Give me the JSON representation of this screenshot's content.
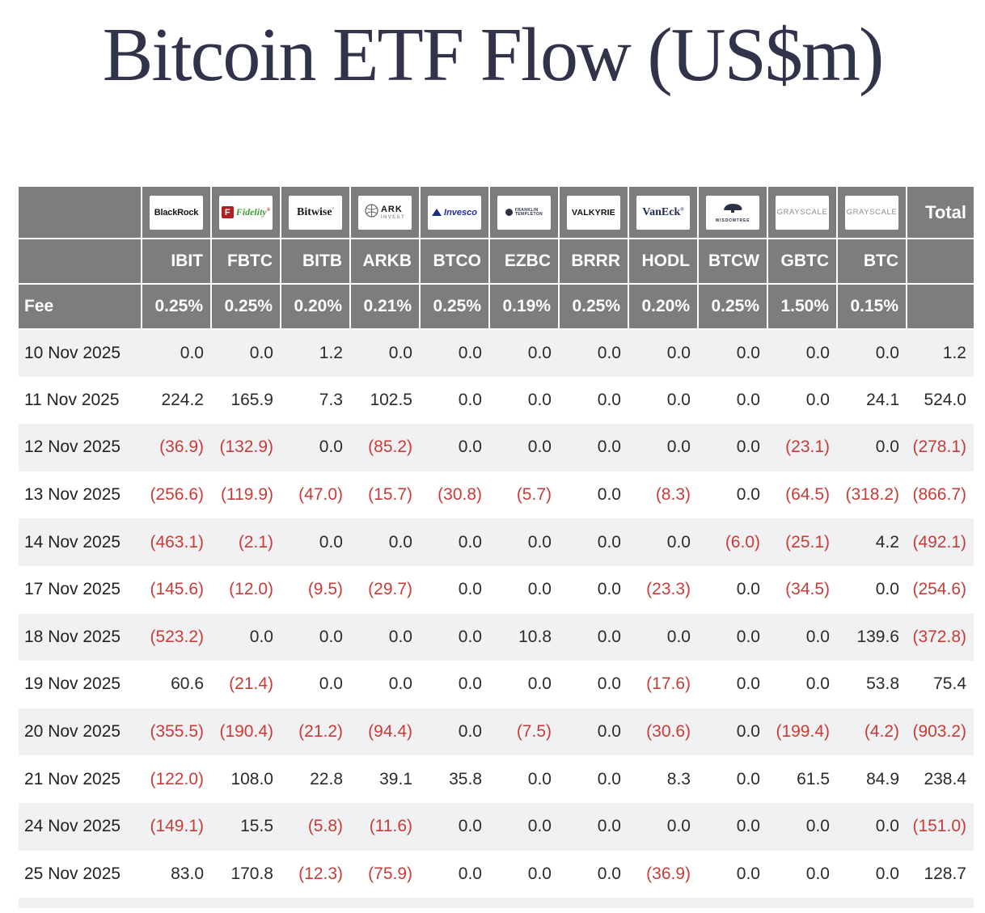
{
  "page_title": "Bitcoin ETF Flow (US$m)",
  "colors": {
    "header_bg": "#7d7d7d",
    "stripe_bg": "#f1f0f2",
    "negative": "#c63d38",
    "text_dark": "#2b2b2b",
    "title": "#30334a"
  },
  "table": {
    "fee_label": "Fee",
    "total_label": "Total",
    "columns": [
      {
        "ticker": "IBIT",
        "fee": "0.25%",
        "provider": "BlackRock",
        "logo": {
          "type": "blackrock",
          "text": "BlackRock"
        }
      },
      {
        "ticker": "FBTC",
        "fee": "0.25%",
        "provider": "Fidelity",
        "logo": {
          "type": "fidelity",
          "letter": "F",
          "text": "Fidelity",
          "mark": "®"
        }
      },
      {
        "ticker": "BITB",
        "fee": "0.20%",
        "provider": "Bitwise",
        "logo": {
          "type": "bitwise",
          "text": "Bitwise",
          "mark": "°"
        }
      },
      {
        "ticker": "ARKB",
        "fee": "0.21%",
        "provider": "ARK Invest",
        "logo": {
          "type": "ark",
          "text": "ARK",
          "subtext": "INVEST"
        }
      },
      {
        "ticker": "BTCO",
        "fee": "0.25%",
        "provider": "Invesco",
        "logo": {
          "type": "invesco",
          "text": "Invesco"
        }
      },
      {
        "ticker": "EZBC",
        "fee": "0.19%",
        "provider": "Franklin Templeton",
        "logo": {
          "type": "franklin",
          "text": "FRANKLIN",
          "subtext": "TEMPLETON"
        }
      },
      {
        "ticker": "BRRR",
        "fee": "0.25%",
        "provider": "Valkyrie",
        "logo": {
          "type": "valkyrie",
          "text": "VALKYRIE"
        }
      },
      {
        "ticker": "HODL",
        "fee": "0.20%",
        "provider": "VanEck",
        "logo": {
          "type": "vaneck",
          "text": "VanEck",
          "mark": "®"
        }
      },
      {
        "ticker": "BTCW",
        "fee": "0.25%",
        "provider": "WisdomTree",
        "logo": {
          "type": "wisdomtree",
          "text": "WISDOMTREE"
        }
      },
      {
        "ticker": "GBTC",
        "fee": "1.50%",
        "provider": "Grayscale",
        "logo": {
          "type": "grayscale",
          "text": "GRAYSCALE"
        }
      },
      {
        "ticker": "BTC",
        "fee": "0.15%",
        "provider": "Grayscale",
        "logo": {
          "type": "grayscale",
          "text": "GRAYSCALE"
        }
      }
    ],
    "rows": [
      {
        "date": "10 Nov 2025",
        "values": [
          "0.0",
          "0.0",
          "1.2",
          "0.0",
          "0.0",
          "0.0",
          "0.0",
          "0.0",
          "0.0",
          "0.0",
          "0.0"
        ],
        "total": "1.2"
      },
      {
        "date": "11 Nov 2025",
        "values": [
          "224.2",
          "165.9",
          "7.3",
          "102.5",
          "0.0",
          "0.0",
          "0.0",
          "0.0",
          "0.0",
          "0.0",
          "24.1"
        ],
        "total": "524.0"
      },
      {
        "date": "12 Nov 2025",
        "values": [
          "(36.9)",
          "(132.9)",
          "0.0",
          "(85.2)",
          "0.0",
          "0.0",
          "0.0",
          "0.0",
          "0.0",
          "(23.1)",
          "0.0"
        ],
        "total": "(278.1)"
      },
      {
        "date": "13 Nov 2025",
        "values": [
          "(256.6)",
          "(119.9)",
          "(47.0)",
          "(15.7)",
          "(30.8)",
          "(5.7)",
          "0.0",
          "(8.3)",
          "0.0",
          "(64.5)",
          "(318.2)"
        ],
        "total": "(866.7)"
      },
      {
        "date": "14 Nov 2025",
        "values": [
          "(463.1)",
          "(2.1)",
          "0.0",
          "0.0",
          "0.0",
          "0.0",
          "0.0",
          "0.0",
          "(6.0)",
          "(25.1)",
          "4.2"
        ],
        "total": "(492.1)"
      },
      {
        "date": "17 Nov 2025",
        "values": [
          "(145.6)",
          "(12.0)",
          "(9.5)",
          "(29.7)",
          "0.0",
          "0.0",
          "0.0",
          "(23.3)",
          "0.0",
          "(34.5)",
          "0.0"
        ],
        "total": "(254.6)"
      },
      {
        "date": "18 Nov 2025",
        "values": [
          "(523.2)",
          "0.0",
          "0.0",
          "0.0",
          "0.0",
          "10.8",
          "0.0",
          "0.0",
          "0.0",
          "0.0",
          "139.6"
        ],
        "total": "(372.8)"
      },
      {
        "date": "19 Nov 2025",
        "values": [
          "60.6",
          "(21.4)",
          "0.0",
          "0.0",
          "0.0",
          "0.0",
          "0.0",
          "(17.6)",
          "0.0",
          "0.0",
          "53.8"
        ],
        "total": "75.4"
      },
      {
        "date": "20 Nov 2025",
        "values": [
          "(355.5)",
          "(190.4)",
          "(21.2)",
          "(94.4)",
          "0.0",
          "(7.5)",
          "0.0",
          "(30.6)",
          "0.0",
          "(199.4)",
          "(4.2)"
        ],
        "total": "(903.2)"
      },
      {
        "date": "21 Nov 2025",
        "values": [
          "(122.0)",
          "108.0",
          "22.8",
          "39.1",
          "35.8",
          "0.0",
          "0.0",
          "8.3",
          "0.0",
          "61.5",
          "84.9"
        ],
        "total": "238.4"
      },
      {
        "date": "24 Nov 2025",
        "values": [
          "(149.1)",
          "15.5",
          "(5.8)",
          "(11.6)",
          "0.0",
          "0.0",
          "0.0",
          "0.0",
          "0.0",
          "0.0",
          "0.0"
        ],
        "total": "(151.0)"
      },
      {
        "date": "25 Nov 2025",
        "values": [
          "83.0",
          "170.8",
          "(12.3)",
          "(75.9)",
          "0.0",
          "0.0",
          "0.0",
          "(36.9)",
          "0.0",
          "0.0",
          "0.0"
        ],
        "total": "128.7"
      }
    ]
  },
  "chart_data": {
    "type": "table",
    "title": "Bitcoin ETF Flow (US$m)",
    "columns": [
      "Date",
      "IBIT",
      "FBTC",
      "BITB",
      "ARKB",
      "BTCO",
      "EZBC",
      "BRRR",
      "HODL",
      "BTCW",
      "GBTC",
      "BTC",
      "Total"
    ],
    "fees_percent": {
      "IBIT": 0.25,
      "FBTC": 0.25,
      "BITB": 0.2,
      "ARKB": 0.21,
      "BTCO": 0.25,
      "EZBC": 0.19,
      "BRRR": 0.25,
      "HODL": 0.2,
      "BTCW": 0.25,
      "GBTC": 1.5,
      "BTC": 0.15
    },
    "rows": [
      [
        "10 Nov 2025",
        0.0,
        0.0,
        1.2,
        0.0,
        0.0,
        0.0,
        0.0,
        0.0,
        0.0,
        0.0,
        0.0,
        1.2
      ],
      [
        "11 Nov 2025",
        224.2,
        165.9,
        7.3,
        102.5,
        0.0,
        0.0,
        0.0,
        0.0,
        0.0,
        0.0,
        24.1,
        524.0
      ],
      [
        "12 Nov 2025",
        -36.9,
        -132.9,
        0.0,
        -85.2,
        0.0,
        0.0,
        0.0,
        0.0,
        0.0,
        -23.1,
        0.0,
        -278.1
      ],
      [
        "13 Nov 2025",
        -256.6,
        -119.9,
        -47.0,
        -15.7,
        -30.8,
        -5.7,
        0.0,
        -8.3,
        0.0,
        -64.5,
        -318.2,
        -866.7
      ],
      [
        "14 Nov 2025",
        -463.1,
        -2.1,
        0.0,
        0.0,
        0.0,
        0.0,
        0.0,
        0.0,
        -6.0,
        -25.1,
        4.2,
        -492.1
      ],
      [
        "17 Nov 2025",
        -145.6,
        -12.0,
        -9.5,
        -29.7,
        0.0,
        0.0,
        0.0,
        -23.3,
        0.0,
        -34.5,
        0.0,
        -254.6
      ],
      [
        "18 Nov 2025",
        -523.2,
        0.0,
        0.0,
        0.0,
        0.0,
        10.8,
        0.0,
        0.0,
        0.0,
        0.0,
        139.6,
        -372.8
      ],
      [
        "19 Nov 2025",
        60.6,
        -21.4,
        0.0,
        0.0,
        0.0,
        0.0,
        0.0,
        -17.6,
        0.0,
        0.0,
        53.8,
        75.4
      ],
      [
        "20 Nov 2025",
        -355.5,
        -190.4,
        -21.2,
        -94.4,
        0.0,
        -7.5,
        0.0,
        -30.6,
        0.0,
        -199.4,
        -4.2,
        -903.2
      ],
      [
        "21 Nov 2025",
        -122.0,
        108.0,
        22.8,
        39.1,
        35.8,
        0.0,
        0.0,
        8.3,
        0.0,
        61.5,
        84.9,
        238.4
      ],
      [
        "24 Nov 2025",
        -149.1,
        15.5,
        -5.8,
        -11.6,
        0.0,
        0.0,
        0.0,
        0.0,
        0.0,
        0.0,
        0.0,
        -151.0
      ],
      [
        "25 Nov 2025",
        83.0,
        170.8,
        -12.3,
        -75.9,
        0.0,
        0.0,
        0.0,
        -36.9,
        0.0,
        0.0,
        0.0,
        128.7
      ]
    ],
    "notes": "Negative values displayed in red parentheses; alternating row stripes; gray header band with issuer logos, tickers and fees."
  }
}
